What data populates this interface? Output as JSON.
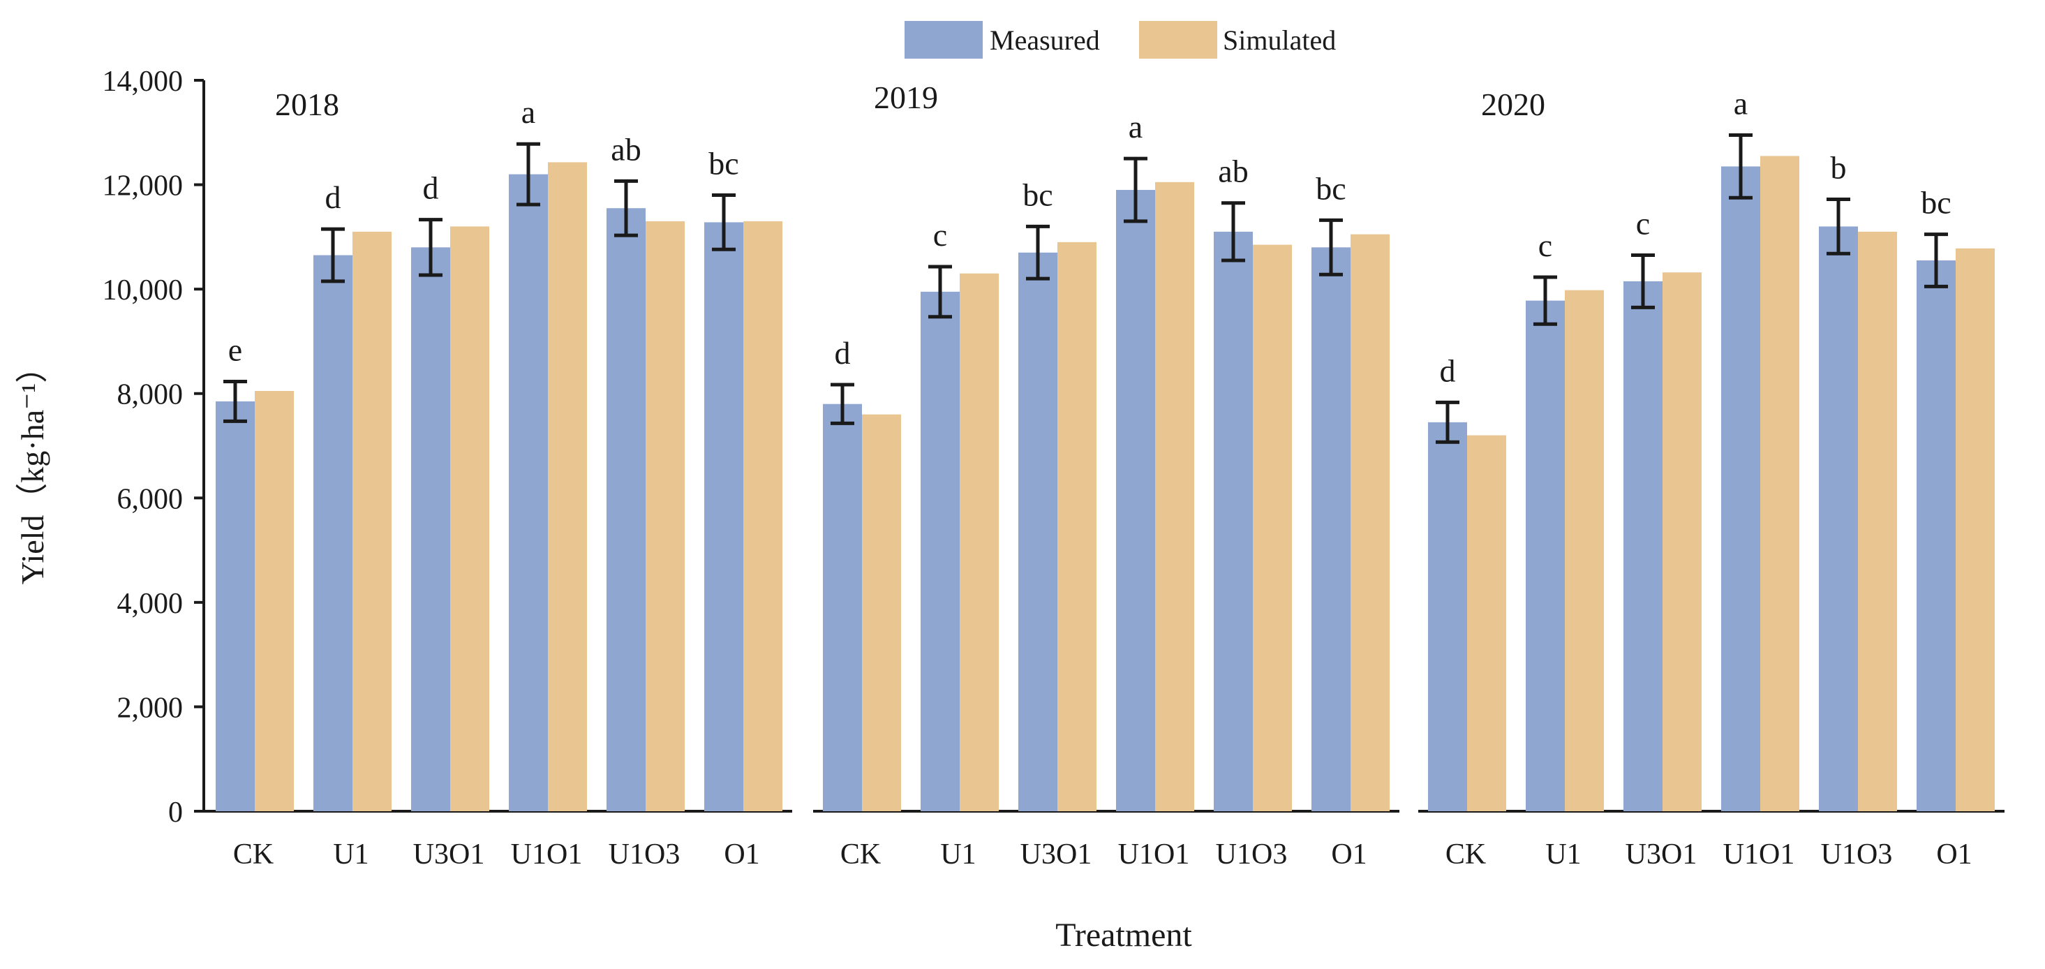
{
  "chart_data": {
    "type": "bar",
    "title": "",
    "xlabel": "Treatment",
    "ylabel": "Yield（kg·ha⁻¹）",
    "ylim": [
      0,
      14000
    ],
    "yticks": [
      0,
      2000,
      4000,
      6000,
      8000,
      10000,
      12000,
      14000
    ],
    "ytick_labels": [
      "0",
      "2,000",
      "4,000",
      "6,000",
      "8,000",
      "10,000",
      "12,000",
      "14,000"
    ],
    "legend": {
      "position": "top-center",
      "entries": [
        "Measured",
        "Simulated"
      ]
    },
    "colors": {
      "Measured": "#8fa6d1",
      "Simulated": "#e9c591",
      "axis": "#1a1a1a"
    },
    "categories": [
      "CK",
      "U1",
      "U3O1",
      "U1O1",
      "U1O3",
      "O1"
    ],
    "panels": [
      {
        "year": "2018",
        "series": [
          {
            "name": "Measured",
            "values": [
              7850,
              10650,
              10800,
              12200,
              11550,
              11280
            ],
            "errors": [
              380,
              500,
              530,
              580,
              520,
              520
            ]
          },
          {
            "name": "Simulated",
            "values": [
              8050,
              11100,
              11200,
              12430,
              11300,
              11300
            ]
          }
        ],
        "letters": [
          "e",
          "d",
          "d",
          "a",
          "ab",
          "bc"
        ]
      },
      {
        "year": "2019",
        "series": [
          {
            "name": "Measured",
            "values": [
              7800,
              9950,
              10700,
              11900,
              11100,
              10800
            ],
            "errors": [
              370,
              480,
              500,
              600,
              550,
              520
            ]
          },
          {
            "name": "Simulated",
            "values": [
              7600,
              10300,
              10900,
              12050,
              10850,
              11050
            ]
          }
        ],
        "letters": [
          "d",
          "c",
          "bc",
          "a",
          "ab",
          "bc"
        ]
      },
      {
        "year": "2020",
        "series": [
          {
            "name": "Measured",
            "values": [
              7450,
              9780,
              10150,
              12350,
              11200,
              10550
            ],
            "errors": [
              380,
              450,
              500,
              600,
              520,
              500
            ]
          },
          {
            "name": "Simulated",
            "values": [
              7200,
              9980,
              10320,
              12550,
              11100,
              10780
            ]
          }
        ],
        "letters": [
          "d",
          "c",
          "c",
          "a",
          "b",
          "bc"
        ]
      }
    ]
  }
}
